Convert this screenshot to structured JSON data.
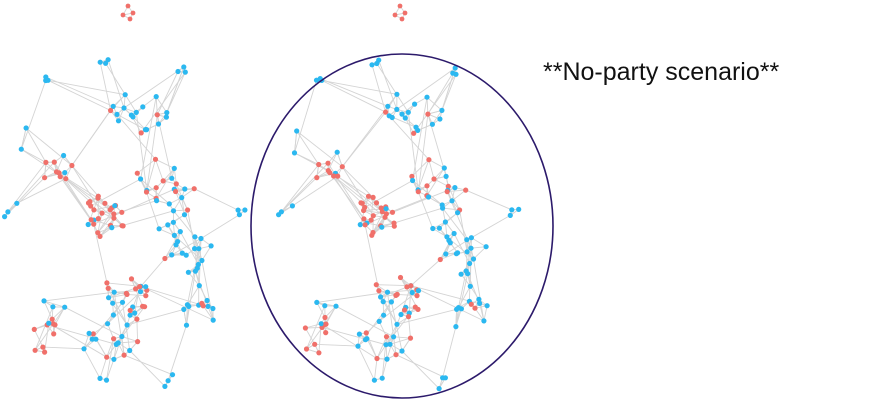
{
  "caption": "**No-party scenario**",
  "colors": {
    "node_a": "#f0706a",
    "node_b": "#2bb8f0",
    "edge": "#d4d4d4",
    "highlight_ellipse": "#2c1a6b",
    "background": "#ffffff"
  },
  "panels": [
    {
      "name": "network-left",
      "highlighted": false
    },
    {
      "name": "network-right",
      "highlighted": true
    }
  ]
}
